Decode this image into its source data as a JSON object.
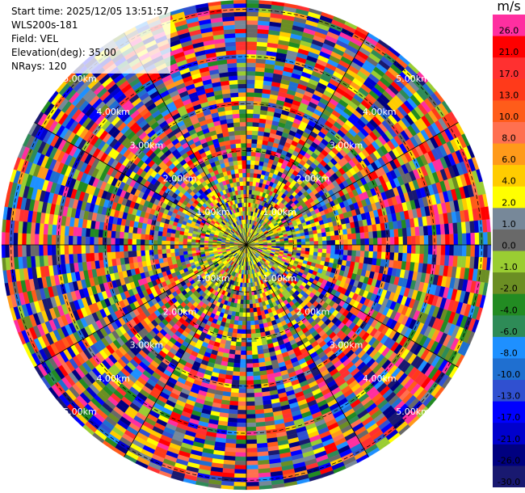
{
  "header": {
    "start_time": "Start time: 2025/12/05 13:51:57",
    "instrument": "WLS200s-181",
    "field": "Field: VEL",
    "elevation": "Elevation(deg): 35.00",
    "nrays": "NRays: 120"
  },
  "colorbar": {
    "unit": "m/s",
    "entries": [
      {
        "label": "26.0",
        "color": "#ff2fa0"
      },
      {
        "label": "21.0",
        "color": "#ff0000"
      },
      {
        "label": "17.0",
        "color": "#ff3030"
      },
      {
        "label": "13.0",
        "color": "#ff3a1a"
      },
      {
        "label": "10.0",
        "color": "#ff5c1a"
      },
      {
        "label": "8.0",
        "color": "#ff7050"
      },
      {
        "label": "6.0",
        "color": "#ff9a1a"
      },
      {
        "label": "4.0",
        "color": "#ffcc00"
      },
      {
        "label": "2.0",
        "color": "#ffff00"
      },
      {
        "label": "1.0",
        "color": "#778899"
      },
      {
        "label": "0.0",
        "color": "#696969"
      },
      {
        "label": "-1.0",
        "color": "#9acd32"
      },
      {
        "label": "-2.0",
        "color": "#6b8e23"
      },
      {
        "label": "-4.0",
        "color": "#228b22"
      },
      {
        "label": "-6.0",
        "color": "#2e8b57"
      },
      {
        "label": "-8.0",
        "color": "#1e90ff"
      },
      {
        "label": "-10.0",
        "color": "#1f6fd0"
      },
      {
        "label": "-13.0",
        "color": "#3050d0"
      },
      {
        "label": "-17.0",
        "color": "#0000ff"
      },
      {
        "label": "-21.0",
        "color": "#0000cd"
      },
      {
        "label": "-26.0",
        "color": "#000080"
      },
      {
        "label": "-30.0",
        "color": "#191970"
      }
    ]
  },
  "chart_data": {
    "type": "heatmap",
    "projection": "polar-ppi",
    "field": "VEL",
    "units": "m/s",
    "elevation_deg": 35.0,
    "n_rays": 120,
    "range_rings_km": [
      1.0,
      2.0,
      3.0,
      4.0,
      5.0
    ],
    "range_ring_labels": [
      "1.00km",
      "2.00km",
      "3.00km",
      "4.00km",
      "5.00km"
    ],
    "max_range_km": 5.2,
    "colorbar_range": [
      -30.0,
      26.0
    ],
    "pattern_note": "near-radar values mostly -1 to 4 m/s (yellow/green), outer region noisy across full scale"
  }
}
